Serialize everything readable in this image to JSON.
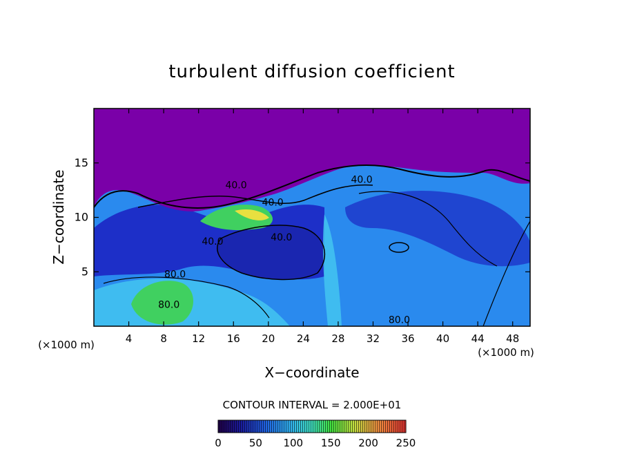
{
  "chart_data": {
    "type": "heatmap",
    "title": "turbulent diffusion coefficient",
    "xlabel": "X−coordinate",
    "ylabel": "Z−coordinate",
    "x_unit_left": "(×1000 m)",
    "x_unit_right": "(×1000 m)",
    "xlim": [
      0,
      50
    ],
    "ylim": [
      0,
      20
    ],
    "x_ticks": [
      4,
      8,
      12,
      16,
      20,
      24,
      28,
      32,
      36,
      40,
      44,
      48
    ],
    "y_ticks": [
      5,
      10,
      15
    ],
    "contour_interval_text": "CONTOUR INTERVAL = 2.000E+01",
    "contour_labels": [
      {
        "text": "40.0",
        "x": 16.3,
        "y": 13.0
      },
      {
        "text": "40.0",
        "x": 20.5,
        "y": 11.4
      },
      {
        "text": "40.0",
        "x": 30.7,
        "y": 13.5
      },
      {
        "text": "40.0",
        "x": 13.6,
        "y": 7.8
      },
      {
        "text": "40.0",
        "x": 21.5,
        "y": 8.2
      },
      {
        "text": "80.0",
        "x": 9.3,
        "y": 4.8
      },
      {
        "text": "80.0",
        "x": 8.6,
        "y": 2.0
      },
      {
        "text": "80.0",
        "x": 35.0,
        "y": 0.6
      }
    ],
    "colorbar": {
      "min": 0,
      "max": 250,
      "ticks": [
        0,
        50,
        100,
        150,
        200,
        250
      ],
      "tick_labels": [
        "0",
        "50",
        "100",
        "150",
        "200",
        "250"
      ]
    },
    "colors": {
      "upper_layer": "#7a00a8",
      "low": "#1d2fc8",
      "mid": "#2a8aee",
      "cyan": "#45c8f0",
      "green": "#40d060",
      "yellow": "#e8e040",
      "orange": "#f08030"
    }
  }
}
